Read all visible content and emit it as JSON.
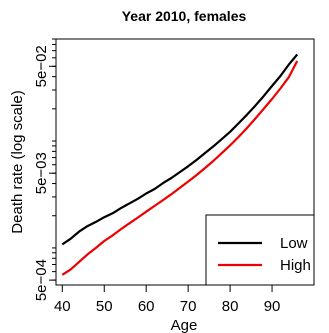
{
  "chart_data": {
    "type": "line",
    "title": "Year 2010, females",
    "xlabel": "Age",
    "ylabel": "Death rate (log scale)",
    "y_scale": "log",
    "xlim": [
      38.5,
      100
    ],
    "ylim": [
      0.00045,
      0.09
    ],
    "x_ticks": [
      40,
      50,
      60,
      70,
      80,
      90
    ],
    "y_ticks": [
      {
        "value": 0.0005,
        "label": "5e−04"
      },
      {
        "value": 0.005,
        "label": "5e−03"
      },
      {
        "value": 0.05,
        "label": "5e−02"
      }
    ],
    "grid": false,
    "legend": {
      "position": "bottom-right",
      "entries": [
        "Low",
        "High"
      ]
    },
    "series": [
      {
        "name": "Low",
        "color": "#000000",
        "x": [
          40,
          42,
          44,
          46,
          48,
          50,
          52,
          54,
          56,
          58,
          60,
          62,
          64,
          66,
          68,
          70,
          72,
          74,
          76,
          78,
          80,
          82,
          84,
          86,
          88,
          90,
          92,
          94,
          96
        ],
        "y": [
          0.00108,
          0.00122,
          0.00142,
          0.0016,
          0.00175,
          0.00194,
          0.00211,
          0.00236,
          0.00261,
          0.00288,
          0.00323,
          0.00356,
          0.00404,
          0.00451,
          0.00512,
          0.0058,
          0.00664,
          0.00771,
          0.0089,
          0.0104,
          0.0122,
          0.0146,
          0.0176,
          0.0214,
          0.0263,
          0.0327,
          0.0406,
          0.0519,
          0.0645
        ]
      },
      {
        "name": "High",
        "color": "#ee0000",
        "x": [
          40,
          42,
          44,
          46,
          48,
          50,
          52,
          54,
          56,
          58,
          60,
          62,
          64,
          66,
          68,
          70,
          72,
          74,
          76,
          78,
          80,
          82,
          84,
          86,
          88,
          90,
          92,
          94,
          96
        ],
        "y": [
          0.00056,
          0.00063,
          0.00074,
          0.00087,
          0.001,
          0.00116,
          0.00131,
          0.0015,
          0.0017,
          0.00192,
          0.00218,
          0.00247,
          0.0028,
          0.00318,
          0.00364,
          0.00417,
          0.0048,
          0.00558,
          0.0065,
          0.0077,
          0.0091,
          0.0109,
          0.0132,
          0.0162,
          0.02,
          0.0247,
          0.031,
          0.0395,
          0.056
        ]
      }
    ]
  }
}
